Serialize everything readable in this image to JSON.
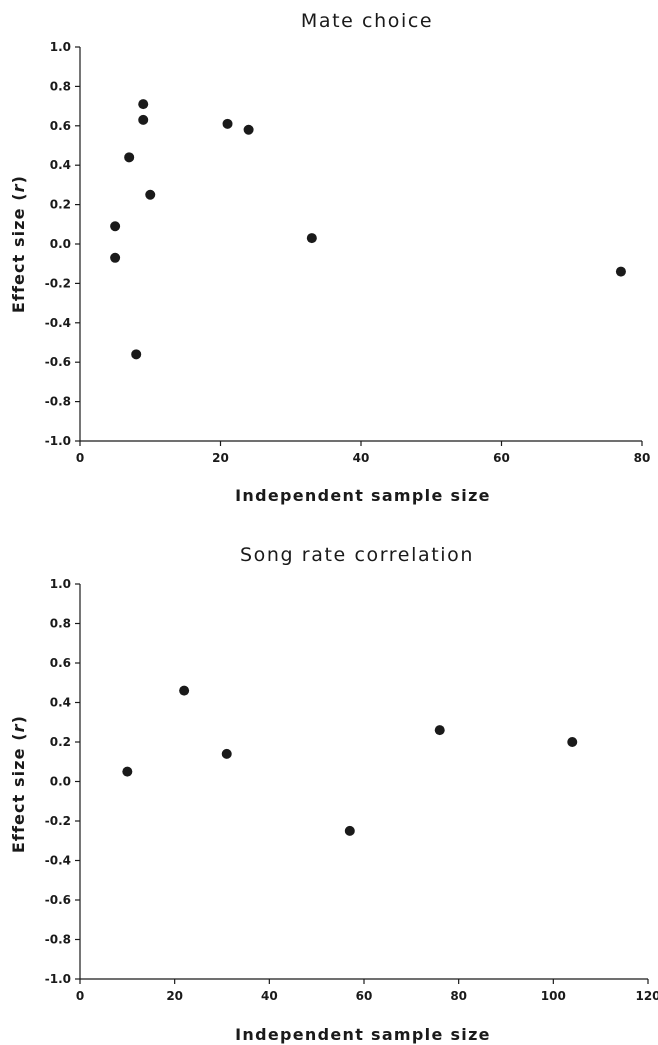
{
  "chart_data": [
    {
      "type": "scatter",
      "title": "Mate choice",
      "xlabel": "Independent sample size",
      "ylabel": "Effect size (r)",
      "xlim": [
        0,
        80
      ],
      "ylim": [
        -1.0,
        1.0
      ],
      "xticks": [
        "0",
        "20",
        "40",
        "60",
        "80"
      ],
      "yticks": [
        "1.0",
        "0.8",
        "0.6",
        "0.4",
        "0.2",
        "0.0",
        "-0.2",
        "-0.4",
        "-0.6",
        "-0.8",
        "-1.0"
      ],
      "grid": false,
      "points": [
        {
          "x": 5,
          "y": 0.09
        },
        {
          "x": 5,
          "y": -0.07
        },
        {
          "x": 7,
          "y": 0.44
        },
        {
          "x": 8,
          "y": -0.56
        },
        {
          "x": 9,
          "y": 0.71
        },
        {
          "x": 9,
          "y": 0.63
        },
        {
          "x": 10,
          "y": 0.25
        },
        {
          "x": 21,
          "y": 0.61
        },
        {
          "x": 24,
          "y": 0.58
        },
        {
          "x": 33,
          "y": 0.03
        },
        {
          "x": 77,
          "y": -0.14
        }
      ]
    },
    {
      "type": "scatter",
      "title": "Song rate correlation",
      "xlabel": "Independent sample size",
      "ylabel": "Effect size (r)",
      "xlim": [
        0,
        120
      ],
      "ylim": [
        -1.0,
        1.0
      ],
      "xticks": [
        "0",
        "20",
        "40",
        "60",
        "80",
        "100",
        "120"
      ],
      "yticks": [
        "1.0",
        "0.8",
        "0.6",
        "0.4",
        "0.2",
        "0.0",
        "-0.2",
        "-0.4",
        "-0.6",
        "-0.8",
        "-1.0"
      ],
      "grid": false,
      "points": [
        {
          "x": 10,
          "y": 0.05
        },
        {
          "x": 22,
          "y": 0.46
        },
        {
          "x": 31,
          "y": 0.14
        },
        {
          "x": 57,
          "y": -0.25
        },
        {
          "x": 76,
          "y": 0.26
        },
        {
          "x": 104,
          "y": 0.2
        }
      ]
    }
  ]
}
